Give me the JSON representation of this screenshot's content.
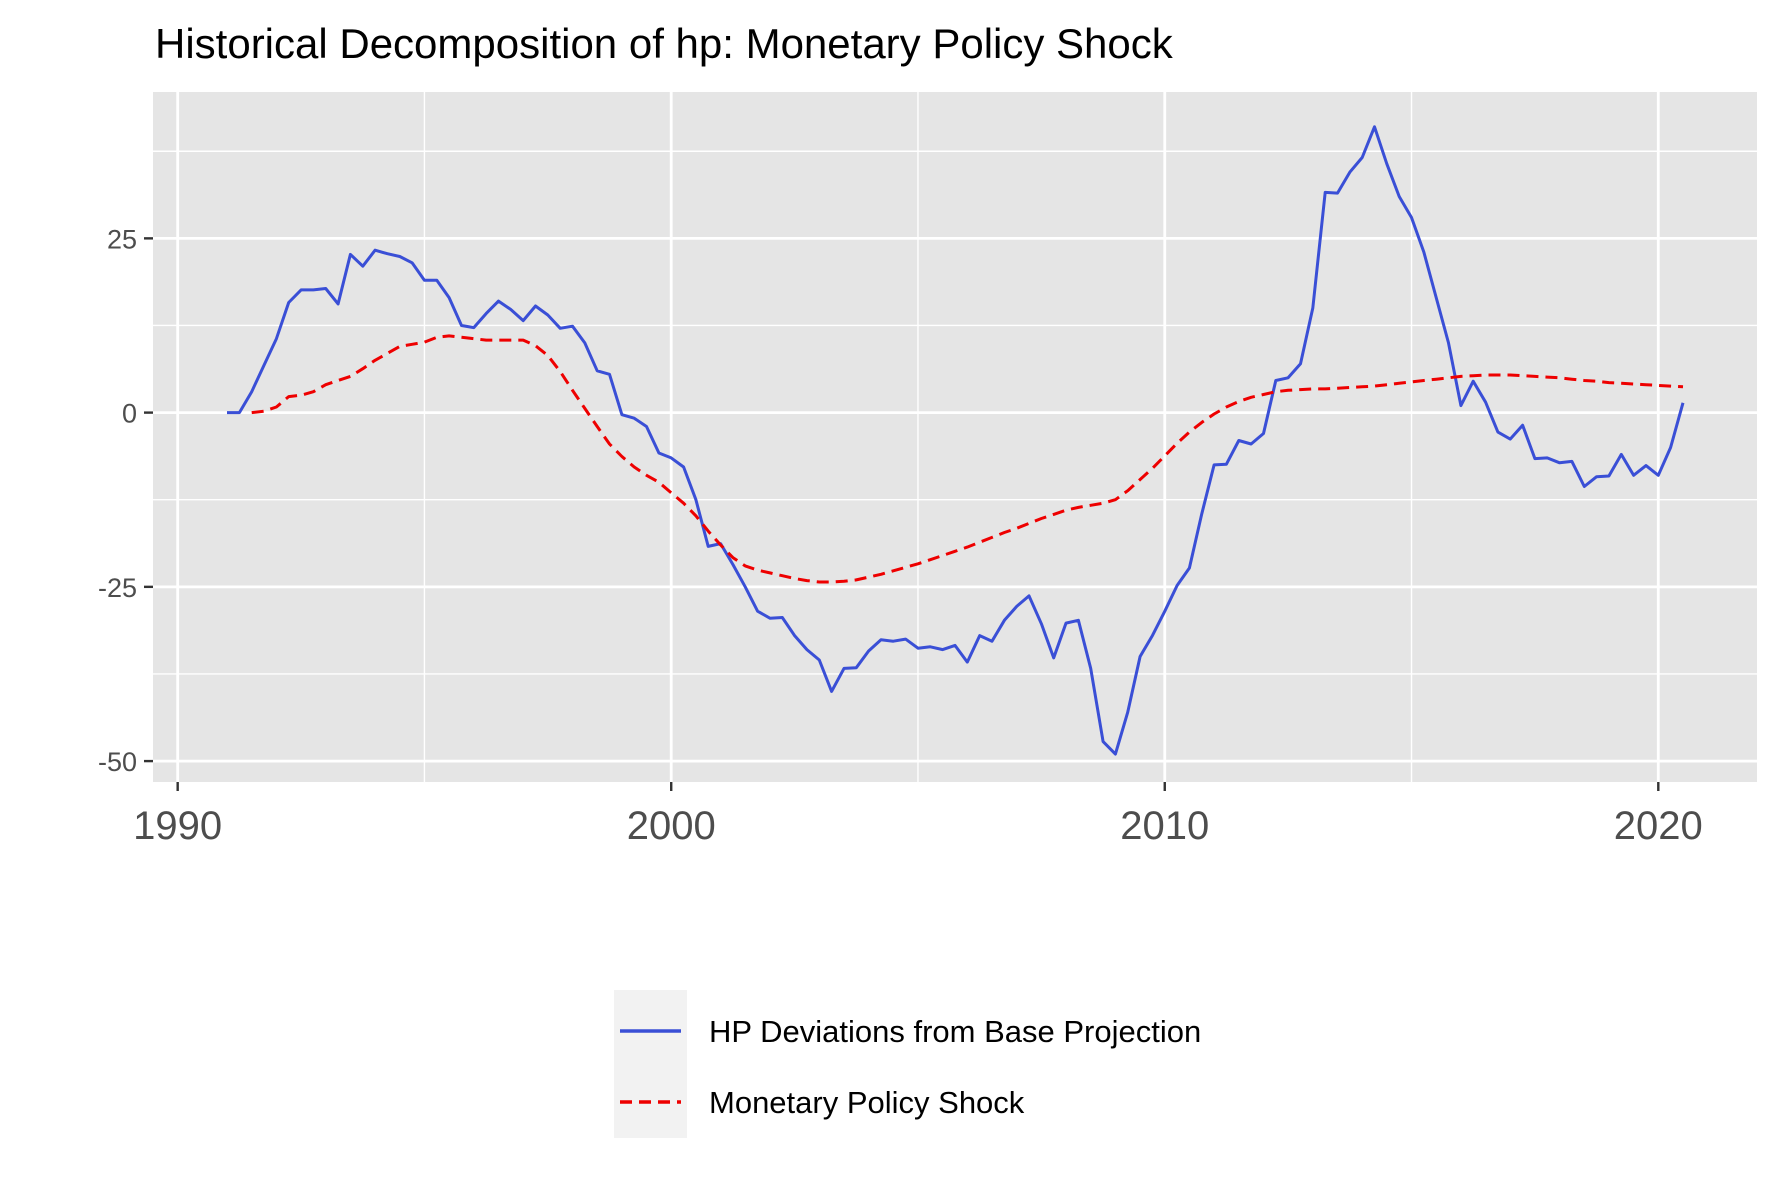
{
  "chart_data": {
    "type": "line",
    "title": "Historical Decomposition of hp: Monetary Policy Shock",
    "xlabel": "",
    "ylabel": "",
    "xlim": [
      1989.5,
      2022
    ],
    "ylim": [
      -53,
      46
    ],
    "x_ticks": [
      1990,
      2000,
      2010,
      2020
    ],
    "x_tick_labels": [
      "1990",
      "2000",
      "2010",
      "2020"
    ],
    "y_ticks": [
      25,
      0,
      -25,
      -50
    ],
    "y_tick_labels": [
      "25",
      "0",
      "-25",
      "-50"
    ],
    "grid": true,
    "legend_position": "bottom",
    "series": [
      {
        "name": "HP Deviations from Base Projection",
        "color": "#3a4fd6",
        "line_style": "solid",
        "x": [
          1991.0,
          1991.25,
          1991.5,
          1991.75,
          1992.0,
          1992.25,
          1992.5,
          1992.75,
          1993.0,
          1993.25,
          1993.5,
          1993.75,
          1994.0,
          1994.25,
          1994.5,
          1994.75,
          1995.0,
          1995.25,
          1995.5,
          1995.75,
          1996.0,
          1996.25,
          1996.5,
          1996.75,
          1997.0,
          1997.25,
          1997.5,
          1997.75,
          1998.0,
          1998.25,
          1998.5,
          1998.75,
          1999.0,
          1999.25,
          1999.5,
          1999.75,
          2000.0,
          2000.25,
          2000.5,
          2000.75,
          2001.0,
          2001.25,
          2001.5,
          2001.75,
          2002.0,
          2002.25,
          2002.5,
          2002.75,
          2003.0,
          2003.25,
          2003.5,
          2003.75,
          2004.0,
          2004.25,
          2004.5,
          2004.75,
          2005.0,
          2005.25,
          2005.5,
          2005.75,
          2006.0,
          2006.25,
          2006.5,
          2006.75,
          2007.0,
          2007.25,
          2007.5,
          2007.75,
          2008.0,
          2008.25,
          2008.5,
          2008.75,
          2009.0,
          2009.25,
          2009.5,
          2009.75,
          2010.0,
          2010.25,
          2010.5,
          2010.75,
          2011.0,
          2011.25,
          2011.5,
          2011.75,
          2012.0,
          2012.25,
          2012.5,
          2012.75,
          2013.0,
          2013.25,
          2013.5,
          2013.75,
          2014.0,
          2014.25,
          2014.5,
          2014.75,
          2015.0,
          2015.25,
          2015.5,
          2015.75,
          2016.0,
          2016.25,
          2016.5,
          2016.75,
          2017.0,
          2017.25,
          2017.5,
          2017.75,
          2018.0,
          2018.25,
          2018.5,
          2018.75,
          2019.0,
          2019.25,
          2019.5,
          2019.75,
          2020.0,
          2020.25,
          2020.5
        ],
        "y": [
          0,
          0,
          3,
          6.8,
          10.6,
          15.8,
          17.6,
          17.6,
          17.8,
          15.6,
          22.7,
          21.0,
          23.3,
          22.8,
          22.4,
          21.5,
          19.0,
          19.0,
          16.5,
          12.5,
          12.2,
          14.2,
          16.0,
          14.8,
          13.2,
          15.3,
          14.0,
          12.1,
          12.4,
          10.0,
          6.0,
          5.5,
          -0.3,
          -0.8,
          -2.0,
          -5.8,
          -6.5,
          -7.8,
          -12.5,
          -19.2,
          -18.8,
          -21.8,
          -25.0,
          -28.5,
          -29.5,
          -29.4,
          -32.0,
          -34.0,
          -35.5,
          -40.0,
          -36.7,
          -36.6,
          -34.2,
          -32.6,
          -32.8,
          -32.5,
          -33.8,
          -33.6,
          -34.0,
          -33.4,
          -35.8,
          -32.0,
          -32.8,
          -29.8,
          -27.8,
          -26.3,
          -30.3,
          -35.2,
          -30.2,
          -29.8,
          -36.7,
          -47.2,
          -49.0,
          -43.0,
          -35.0,
          -32.0,
          -28.5,
          -24.8,
          -22.3,
          -14.5,
          -7.5,
          -7.4,
          -4.0,
          -4.5,
          -3.0,
          4.6,
          5.0,
          7.0,
          15.0,
          31.6,
          31.5,
          34.5,
          36.6,
          41.0,
          35.7,
          31.0,
          28.0,
          23.0,
          16.5,
          10.0,
          1.0,
          4.5,
          1.5,
          -2.8,
          -3.8,
          -1.8,
          -6.6,
          -6.5,
          -7.2,
          -7.0,
          -10.6,
          -9.2,
          -9.1,
          -6.0,
          -9.0,
          -7.6,
          -9.0,
          -5.0,
          1.4
        ]
      },
      {
        "name": "Monetary Policy Shock",
        "color": "#ee0000",
        "line_style": "dashed",
        "x": [
          1991.5,
          1991.75,
          1992.0,
          1992.25,
          1992.5,
          1992.75,
          1993.0,
          1993.25,
          1993.5,
          1993.75,
          1994.0,
          1994.25,
          1994.5,
          1994.75,
          1995.0,
          1995.25,
          1995.5,
          1995.75,
          1996.0,
          1996.25,
          1996.5,
          1996.75,
          1997.0,
          1997.25,
          1997.5,
          1997.75,
          1998.0,
          1998.25,
          1998.5,
          1998.75,
          1999.0,
          1999.25,
          1999.5,
          1999.75,
          2000.0,
          2000.25,
          2000.5,
          2000.75,
          2001.0,
          2001.25,
          2001.5,
          2001.75,
          2002.0,
          2002.25,
          2002.5,
          2002.75,
          2003.0,
          2003.25,
          2003.5,
          2003.75,
          2004.0,
          2004.25,
          2004.5,
          2004.75,
          2005.0,
          2005.25,
          2005.5,
          2005.75,
          2006.0,
          2006.25,
          2006.5,
          2006.75,
          2007.0,
          2007.25,
          2007.5,
          2007.75,
          2008.0,
          2008.25,
          2008.5,
          2008.75,
          2009.0,
          2009.25,
          2009.5,
          2009.75,
          2010.0,
          2010.25,
          2010.5,
          2010.75,
          2011.0,
          2011.25,
          2011.5,
          2011.75,
          2012.0,
          2012.25,
          2012.5,
          2012.75,
          2013.0,
          2013.25,
          2013.5,
          2013.75,
          2014.0,
          2014.25,
          2014.5,
          2014.75,
          2015.0,
          2015.25,
          2015.5,
          2015.75,
          2016.0,
          2016.25,
          2016.5,
          2016.75,
          2017.0,
          2017.25,
          2017.5,
          2017.75,
          2018.0,
          2018.25,
          2018.5,
          2018.75,
          2019.0,
          2019.25,
          2019.5,
          2019.75,
          2020.0,
          2020.25,
          2020.5
        ],
        "y": [
          0,
          0.2,
          0.8,
          2.3,
          2.5,
          3.0,
          4.0,
          4.6,
          5.2,
          6.3,
          7.5,
          8.5,
          9.5,
          9.8,
          10.1,
          10.8,
          11.0,
          10.8,
          10.6,
          10.4,
          10.4,
          10.4,
          10.4,
          9.6,
          8.2,
          5.9,
          3.2,
          0.6,
          -2.0,
          -4.5,
          -6.3,
          -7.8,
          -9.0,
          -10.0,
          -11.5,
          -13.0,
          -14.8,
          -17.0,
          -19.0,
          -20.8,
          -22.0,
          -22.6,
          -23.0,
          -23.4,
          -23.8,
          -24.1,
          -24.3,
          -24.3,
          -24.2,
          -24.0,
          -23.6,
          -23.2,
          -22.7,
          -22.2,
          -21.7,
          -21.1,
          -20.5,
          -19.9,
          -19.3,
          -18.6,
          -17.9,
          -17.2,
          -16.6,
          -15.9,
          -15.2,
          -14.6,
          -14.0,
          -13.6,
          -13.3,
          -13.0,
          -12.5,
          -11.2,
          -9.6,
          -8.0,
          -6.2,
          -4.4,
          -2.8,
          -1.4,
          -0.2,
          0.8,
          1.6,
          2.2,
          2.6,
          3.0,
          3.2,
          3.3,
          3.4,
          3.4,
          3.5,
          3.6,
          3.7,
          3.8,
          4.0,
          4.2,
          4.4,
          4.6,
          4.8,
          5.0,
          5.2,
          5.3,
          5.4,
          5.4,
          5.4,
          5.3,
          5.2,
          5.1,
          5.0,
          4.8,
          4.6,
          4.5,
          4.3,
          4.2,
          4.1,
          4.0,
          3.9,
          3.8,
          3.7
        ]
      }
    ]
  }
}
